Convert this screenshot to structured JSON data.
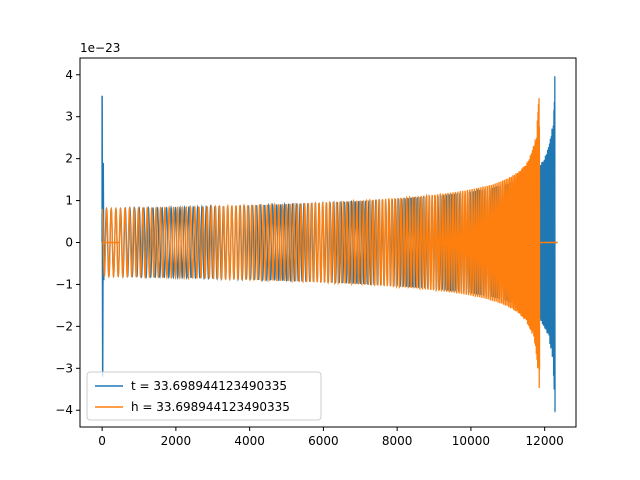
{
  "chart_data": {
    "type": "line",
    "title": "",
    "xlabel": "",
    "ylabel": "",
    "y_offset_label": "1e−23",
    "xlim": [
      -600,
      12850
    ],
    "ylim": [
      -4.4,
      4.4
    ],
    "x_ticks": [
      0,
      2000,
      4000,
      6000,
      8000,
      10000,
      12000
    ],
    "x_tick_labels": [
      "0",
      "2000",
      "4000",
      "6000",
      "8000",
      "10000",
      "12000"
    ],
    "y_ticks": [
      -4,
      -3,
      -2,
      -1,
      0,
      1,
      2,
      3,
      4
    ],
    "y_tick_labels": [
      "−4",
      "−3",
      "−2",
      "−1",
      "0",
      "1",
      "2",
      "3",
      "4"
    ],
    "grid": false,
    "legend_position": "lower-left",
    "series": [
      {
        "name": "t = 33.698944123490335",
        "color": "#1f77b4",
        "description": "chirp waveform",
        "x_start": 0,
        "x_end": 12290,
        "baseline_amplitude": 0.8,
        "peak_amplitude": 4.1,
        "initial_spike": [
          3.5,
          -3.2
        ]
      },
      {
        "name": "h = 33.698944123490335",
        "color": "#ff7f0e",
        "description": "chirp waveform",
        "x_start": 0,
        "x_end": 11870,
        "baseline_amplitude": 0.8,
        "peak_amplitude": 4.1,
        "initial_spike": [
          0,
          0
        ]
      }
    ]
  }
}
